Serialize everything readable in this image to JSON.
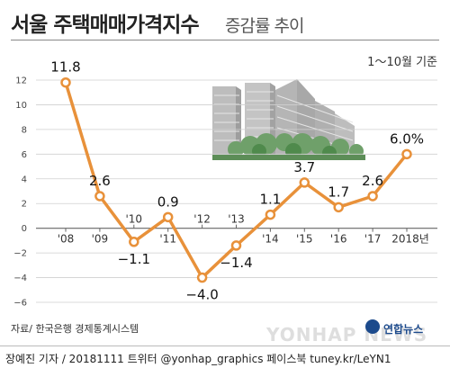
{
  "header": {
    "title": "서울 주택매매가격지수",
    "subtitle": "증감률 추이",
    "period_note": "1～10월 기준"
  },
  "source_note": "자료/ 한국은행 경제통계시스템",
  "footer": {
    "credit": "장예진 기자 / 20181111 트위터 @yonhap_graphics  페이스북 tuney.kr/LeYN1"
  },
  "logo": {
    "text": "연합뉴스",
    "watermark": "YONHAP NEWS"
  },
  "colors": {
    "line": "#e8913a",
    "marker_fill": "#ffffff",
    "grid": "#cfcfcf",
    "zero_line": "#666666"
  },
  "chart_data": {
    "type": "line",
    "categories": [
      "'08",
      "'09",
      "'10",
      "'11",
      "'12",
      "'13",
      "'14",
      "'15",
      "'16",
      "'17",
      "2018년"
    ],
    "values": [
      11.8,
      2.6,
      -1.1,
      0.9,
      -4.0,
      -1.4,
      1.1,
      3.7,
      1.7,
      2.6,
      6.0
    ],
    "value_labels": [
      "11.8",
      "2.6",
      "−1.1",
      "0.9",
      "−4.0",
      "−1.4",
      "1.1",
      "3.7",
      "1.7",
      "2.6",
      "6.0%"
    ],
    "ylim": [
      -6,
      12
    ],
    "yticks": [
      12,
      10,
      8,
      6,
      4,
      2,
      0,
      -2,
      -4,
      -6
    ],
    "ytick_labels": [
      "12",
      "10",
      "8",
      "6",
      "4",
      "2",
      "0",
      "−2",
      "−4",
      "−6"
    ],
    "xlabel": "",
    "ylabel": "",
    "grid": true,
    "legend": "none"
  }
}
